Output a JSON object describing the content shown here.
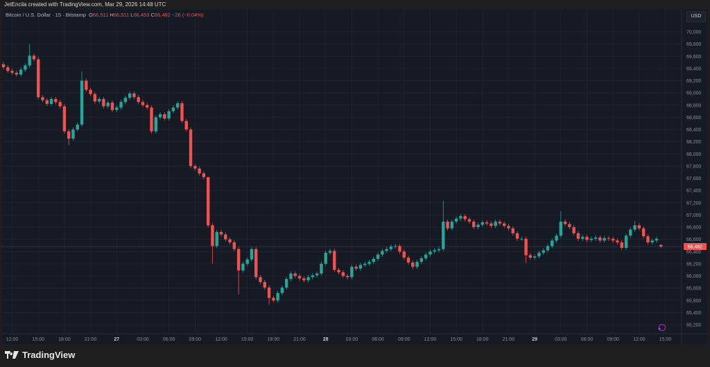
{
  "header": {
    "caption": "JetEncila created with TradingView.com, Mar 29, 2026 14:48 UTC"
  },
  "legend": {
    "symbol": "Bitcoin / U.S. Dollar · 15 · Bitstamp",
    "open_label": "O",
    "open": "66,511",
    "high_label": "H",
    "high": "66,511",
    "low_label": "L",
    "low": "66,453",
    "close_label": "C",
    "close": "66,482",
    "change": "−26 (−0.04%)"
  },
  "price_axis": {
    "currency": "USD",
    "last_price_label": "66,482"
  },
  "footer": {
    "brand": "TradingView"
  },
  "colors": {
    "up": "#26a69a",
    "down": "#ef5350",
    "background": "#161a25",
    "grid": "#232735",
    "last_price": "#ef5350",
    "event_marker": "#9c27b0"
  },
  "icons": {
    "logo": "tradingview-logo",
    "event": "events-icon"
  },
  "chart_data": {
    "type": "candlestick",
    "ylim": [
      65100,
      70100
    ],
    "grid": true,
    "y_ticks": [
      "70,000",
      "69,800",
      "69,600",
      "69,400",
      "69,200",
      "69,000",
      "68,800",
      "68,600",
      "68,400",
      "68,200",
      "68,000",
      "67,800",
      "67,600",
      "67,400",
      "67,200",
      "67,000",
      "66,800",
      "66,600",
      "66,400",
      "66,200",
      "66,000",
      "65,800",
      "65,600",
      "65,400",
      "65,200"
    ],
    "x_ticks": [
      "12:00",
      "15:00",
      "18:00",
      "21:00",
      "27",
      "03:00",
      "06:00",
      "09:00",
      "12:00",
      "15:00",
      "18:00",
      "21:00",
      "28",
      "03:00",
      "06:00",
      "09:00",
      "12:00",
      "15:00",
      "18:00",
      "21:00",
      "29",
      "03:00",
      "06:00",
      "09:00",
      "12:00",
      "15:00"
    ],
    "last_price": 66482,
    "first_open": 69470,
    "close": [
      69420,
      69360,
      69330,
      69300,
      69380,
      69450,
      69610,
      69550,
      68930,
      68880,
      68820,
      68900,
      68850,
      68780,
      68370,
      68250,
      68400,
      68480,
      69200,
      69050,
      68980,
      68860,
      68900,
      68780,
      68840,
      68720,
      68760,
      68850,
      68920,
      68990,
      68930,
      68850,
      68800,
      68760,
      68370,
      68600,
      68650,
      68580,
      68700,
      68760,
      68830,
      68540,
      68400,
      67800,
      67760,
      67680,
      67620,
      66830,
      66490,
      66720,
      66680,
      66600,
      66550,
      66440,
      66090,
      66200,
      66270,
      66440,
      65980,
      65900,
      65810,
      65640,
      65600,
      65720,
      65810,
      65950,
      66040,
      66000,
      65960,
      65930,
      65980,
      66010,
      66040,
      66200,
      66380,
      66410,
      66100,
      66060,
      66000,
      65980,
      66150,
      66120,
      66180,
      66200,
      66230,
      66280,
      66350,
      66410,
      66440,
      66480,
      66490,
      66400,
      66300,
      66220,
      66150,
      66230,
      66290,
      66350,
      66400,
      66420,
      66440,
      66890,
      66780,
      66890,
      66940,
      66980,
      66930,
      66890,
      66800,
      66840,
      66880,
      66860,
      66820,
      66890,
      66860,
      66820,
      66780,
      66700,
      66610,
      66610,
      66340,
      66300,
      66320,
      66380,
      66420,
      66490,
      66580,
      66660,
      66890,
      66850,
      66800,
      66700,
      66610,
      66640,
      66590,
      66610,
      66630,
      66580,
      66620,
      66610,
      66580,
      66550,
      66460,
      66660,
      66760,
      66830,
      66780,
      66650,
      66550,
      66580,
      66610,
      66482
    ],
    "high_extremes": {
      "6": 69800,
      "18": 69350,
      "47": 67000,
      "101": 67230,
      "128": 67060,
      "145": 66900,
      "151": 66511
    },
    "low_extremes": {
      "15": 68140,
      "48": 66200,
      "54": 65700,
      "61": 65530,
      "120": 66210,
      "151": 66453
    }
  }
}
